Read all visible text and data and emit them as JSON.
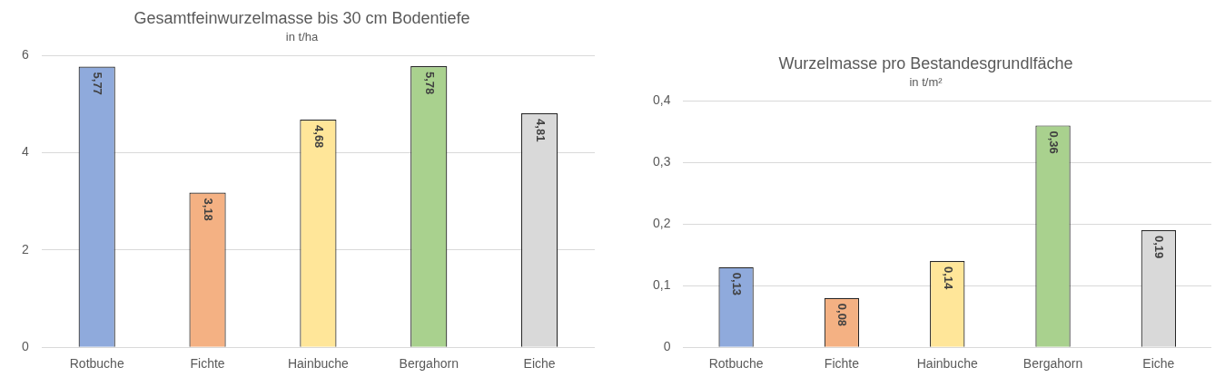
{
  "chart_data": [
    {
      "type": "bar",
      "title": "Gesamtfeinwurzelmasse bis 30 cm Bodentiefe",
      "subtitle": "in t/ha",
      "categories": [
        "Rotbuche",
        "Fichte",
        "Hainbuche",
        "Bergahorn",
        "Eiche"
      ],
      "values": [
        5.77,
        3.18,
        4.68,
        5.78,
        4.81
      ],
      "colors": [
        "#8faadc",
        "#f4b183",
        "#ffe699",
        "#a9d18e",
        "#d9d9d9"
      ],
      "value_labels": [
        "5,77",
        "3,18",
        "4,68",
        "5,78",
        "4,81"
      ],
      "ylim": [
        0,
        6
      ],
      "yticks": [
        0,
        2,
        4,
        6
      ],
      "grid": "y",
      "legend": false
    },
    {
      "type": "bar",
      "title": "Wurzelmasse pro Bestandesgrundlfäche",
      "subtitle": "in t/m²",
      "categories": [
        "Rotbuche",
        "Fichte",
        "Hainbuche",
        "Bergahorn",
        "Eiche"
      ],
      "values": [
        0.13,
        0.08,
        0.14,
        0.36,
        0.19
      ],
      "colors": [
        "#8faadc",
        "#f4b183",
        "#ffe699",
        "#a9d18e",
        "#d9d9d9"
      ],
      "value_labels": [
        "0,13",
        "0,08",
        "0,14",
        "0,36",
        "0,19"
      ],
      "ylim": [
        0,
        0.4
      ],
      "yticks": [
        0,
        {
          "value": 0.1,
          "label": "0,1"
        },
        {
          "value": 0.2,
          "label": "0,2"
        },
        {
          "value": 0.3,
          "label": "0,3"
        },
        {
          "value": 0.4,
          "label": "0,4"
        }
      ],
      "grid": "y",
      "legend": false
    }
  ]
}
